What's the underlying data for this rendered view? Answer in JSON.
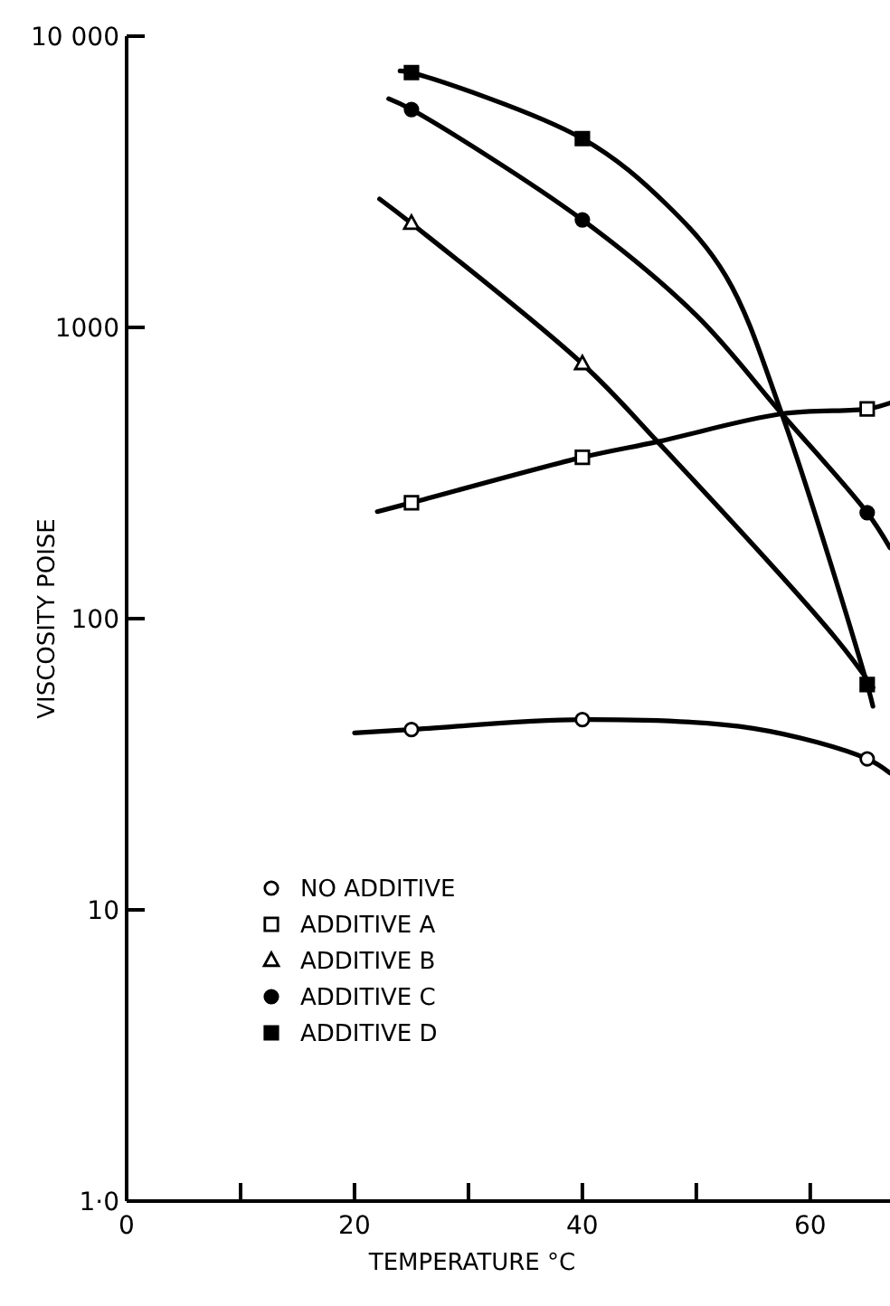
{
  "chart_data": {
    "type": "line",
    "xlabel": "TEMPERATURE °C",
    "ylabel": "VISCOSITY POISE",
    "log": "y",
    "xlim": [
      0,
      67
    ],
    "ylim": [
      1,
      10000
    ],
    "xticks": [
      0,
      {
        "value": 10,
        "label": null
      },
      20,
      {
        "value": 30,
        "label": null
      },
      40,
      {
        "value": 50,
        "label": null
      },
      60
    ],
    "yticks": [
      {
        "value": 1,
        "label": "1·0"
      },
      10,
      100,
      1000,
      {
        "value": 10000,
        "label": "10 000"
      }
    ],
    "grid": false,
    "legend": "bottom left",
    "line_style": "solid",
    "series": [
      {
        "color": "#000000",
        "x": [
          20,
          25,
          40,
          55,
          65,
          67
        ],
        "values": [
          40.5,
          41.6,
          45,
          42,
          33,
          29.5
        ]
      },
      {
        "color": "#000000",
        "x": [
          22,
          25,
          40,
          46.6,
          57.5,
          65,
          67
        ],
        "values": [
          233,
          250,
          358,
          405,
          505,
          525,
          550
        ]
      },
      {
        "color": "#000000",
        "x": [
          22.2,
          25,
          40,
          46.6,
          62.2,
          65.5
        ],
        "values": [
          2760,
          2275,
          750,
          405,
          86,
          58
        ]
      },
      {
        "color": "#000000",
        "x": [
          23,
          25,
          40,
          50,
          57.5,
          65,
          67
        ],
        "values": [
          6100,
          5600,
          2340,
          1100,
          505,
          231,
          175
        ]
      },
      {
        "color": "#000000",
        "x": [
          24,
          25,
          40,
          47.4,
          52.6,
          57.5,
          65,
          65.5
        ],
        "values": [
          7600,
          7500,
          4450,
          2640,
          1500,
          505,
          59.4,
          50
        ]
      },
      {
        "type": "scatter",
        "name": "NO ADDITIVE",
        "color": "#ffffff",
        "marker": "circle",
        "x": [
          25,
          40,
          65
        ],
        "values": [
          41.6,
          45,
          33
        ]
      },
      {
        "type": "scatter",
        "name": "ADDITIVE A",
        "color": "#ffffff",
        "marker": "square",
        "x": [
          25,
          40,
          65
        ],
        "values": [
          250,
          358,
          525
        ]
      },
      {
        "type": "scatter",
        "name": "ADDITIVE B",
        "color": "#ffffff",
        "marker": "triangle",
        "x": [
          25,
          40
        ],
        "values": [
          2275,
          750
        ]
      },
      {
        "type": "scatter",
        "name": "ADDITIVE C",
        "color": "#000000",
        "marker": "circle",
        "x": [
          25,
          40,
          65
        ],
        "values": [
          5600,
          2340,
          231
        ]
      },
      {
        "type": "scatter",
        "name": "ADDITIVE D",
        "color": "#000000",
        "marker": "square",
        "x": [
          25,
          40,
          65
        ],
        "values": [
          7500,
          4450,
          59.4
        ]
      }
    ]
  }
}
